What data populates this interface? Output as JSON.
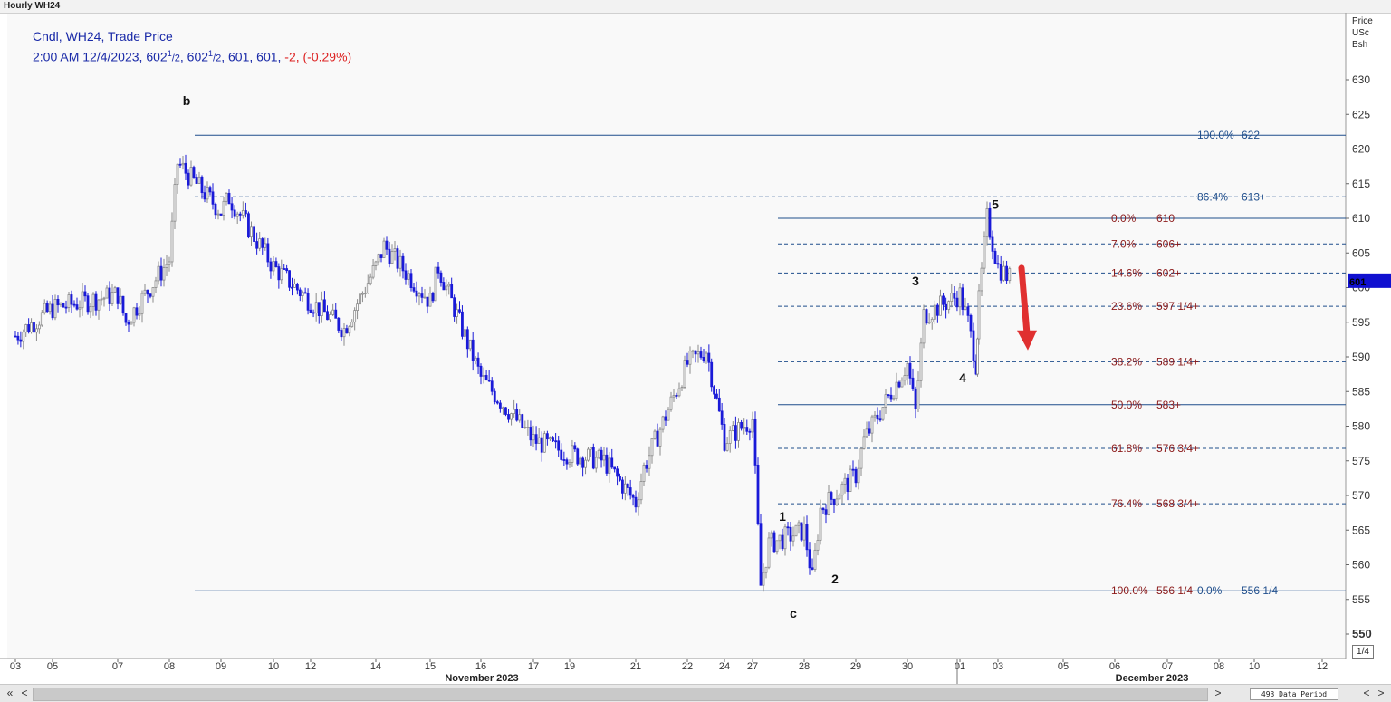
{
  "window": {
    "title": "Hourly WH24"
  },
  "legend": {
    "line1": "Cndl, WH24, Trade Price",
    "line2_prefix": "2:00 AM 12/4/2023, 602",
    "sup_a": "1",
    "sub_a": "/2",
    "mid": ", 602",
    "sup_b": "1",
    "sub_b": "/2",
    "suffix": ", 601, 601, ",
    "change": "-2, (-0.29%)"
  },
  "axis_title": {
    "l1": "Price",
    "l2": "USc",
    "l3": "Bsh"
  },
  "unit_label": "1/4",
  "last_price_tag": "601",
  "scrollbar": {
    "left": "«",
    "lt": "<",
    "gt": ">",
    "right": "»",
    "period_label": "493 Data Period"
  },
  "colors": {
    "up": "#8a8a8a",
    "down": "#1a1ad8",
    "fib_line": "#1f4e8c",
    "fib_text_red": "#8b1a1a",
    "fib_text_blue": "#1f4e8c",
    "arrow": "#e03030",
    "price_tag": "#1010d0"
  },
  "chart_data": {
    "type": "candlestick",
    "title": "Hourly WH24",
    "ylabel": "Price USc Bsh",
    "ylim": [
      546,
      633
    ],
    "y_ticks": [
      550,
      555,
      560,
      565,
      570,
      575,
      580,
      585,
      590,
      595,
      600,
      605,
      610,
      615,
      620,
      625,
      630
    ],
    "x_ticks": [
      "03",
      "05",
      "07",
      "08",
      "09",
      "10",
      "12",
      "14",
      "15",
      "16",
      "17",
      "19",
      "21",
      "22",
      "24",
      "27",
      "28",
      "29",
      "30",
      "01",
      "03",
      "05",
      "06",
      "07",
      "08",
      "10",
      "12"
    ],
    "x_month_labels": [
      "November 2023",
      "December 2023"
    ],
    "price_path": [
      {
        "d": "Nov 03",
        "p": 593
      },
      {
        "d": "Nov 05",
        "p": 597
      },
      {
        "d": "Nov 06",
        "p": 598
      },
      {
        "d": "Nov 07",
        "p": 599
      },
      {
        "d": "Nov 07",
        "p": 595
      },
      {
        "d": "Nov 08",
        "p": 604
      },
      {
        "d": "Nov 08",
        "p": 618
      },
      {
        "d": "Nov 09",
        "p": 611
      },
      {
        "d": "Nov 09",
        "p": 613
      },
      {
        "d": "Nov 10",
        "p": 603
      },
      {
        "d": "Nov 12",
        "p": 598
      },
      {
        "d": "Nov 13",
        "p": 594
      },
      {
        "d": "Nov 14",
        "p": 603
      },
      {
        "d": "Nov 14",
        "p": 606
      },
      {
        "d": "Nov 15",
        "p": 598
      },
      {
        "d": "Nov 15",
        "p": 603
      },
      {
        "d": "Nov 16",
        "p": 587
      },
      {
        "d": "Nov 17",
        "p": 578
      },
      {
        "d": "Nov 19",
        "p": 576
      },
      {
        "d": "Nov 20",
        "p": 575
      },
      {
        "d": "Nov 21",
        "p": 569
      },
      {
        "d": "Nov 21",
        "p": 574
      },
      {
        "d": "Nov 22",
        "p": 589
      },
      {
        "d": "Nov 23",
        "p": 591
      },
      {
        "d": "Nov 24",
        "p": 578
      },
      {
        "d": "Nov 27",
        "p": 581
      },
      {
        "d": "Nov 27",
        "p": 557
      },
      {
        "d": "Nov 27",
        "p": 563
      },
      {
        "d": "Nov 28",
        "p": 565
      },
      {
        "d": "Nov 28",
        "p": 558
      },
      {
        "d": "Nov 28",
        "p": 568
      },
      {
        "d": "Nov 29",
        "p": 573
      },
      {
        "d": "Nov 29",
        "p": 578
      },
      {
        "d": "Nov 30",
        "p": 589
      },
      {
        "d": "Nov 30",
        "p": 582
      },
      {
        "d": "Nov 30",
        "p": 596
      },
      {
        "d": "Dec 01",
        "p": 599
      },
      {
        "d": "Dec 01",
        "p": 595
      },
      {
        "d": "Dec 01",
        "p": 589
      },
      {
        "d": "Dec 02",
        "p": 598
      },
      {
        "d": "Dec 02",
        "p": 610
      },
      {
        "d": "Dec 03",
        "p": 603
      },
      {
        "d": "Dec 04",
        "p": 601
      }
    ],
    "wave_labels": [
      {
        "text": "b",
        "date": "Nov 08",
        "price": 627
      },
      {
        "text": "1",
        "date": "Nov 27",
        "price": 567
      },
      {
        "text": "2",
        "date": "Nov 28",
        "price": 558
      },
      {
        "text": "c",
        "date": "Nov 27",
        "price": 553
      },
      {
        "text": "3",
        "date": "Nov 30",
        "price": 601
      },
      {
        "text": "4",
        "date": "Dec 01",
        "price": 587
      },
      {
        "text": "5",
        "date": "Dec 02",
        "price": 612
      }
    ],
    "fib_levels_major": [
      {
        "label": "100.0%",
        "value_text": "622",
        "price": 622,
        "style": "solid",
        "color": "blue"
      },
      {
        "label": "86.4%",
        "value_text": "613+",
        "price": 613.1,
        "style": "dashed",
        "color": "blue"
      }
    ],
    "fib_levels_minor": [
      {
        "label": "0.0%",
        "value_text": "610",
        "price": 610,
        "style": "solid"
      },
      {
        "label": "7.0%",
        "value_text": "606+",
        "price": 606.3,
        "style": "dashed"
      },
      {
        "label": "14.6%",
        "value_text": "602+",
        "price": 602.1,
        "style": "dashed"
      },
      {
        "label": "23.6%",
        "value_text": "597 1/4+",
        "price": 597.3,
        "style": "dashed"
      },
      {
        "label": "38.2%",
        "value_text": "589 1/4+",
        "price": 589.3,
        "style": "dashed"
      },
      {
        "label": "50.0%",
        "value_text": "583+",
        "price": 583.1,
        "style": "solid"
      },
      {
        "label": "61.8%",
        "value_text": "576 3/4+",
        "price": 576.8,
        "style": "dashed"
      },
      {
        "label": "76.4%",
        "value_text": "568 3/4+",
        "price": 568.8,
        "style": "dashed"
      },
      {
        "label": "100.0%",
        "value_text": "556 1/4",
        "price": 556.25,
        "style": "solid"
      }
    ],
    "fib_base_label": {
      "label": "0.0%",
      "value_text": "556 1/4",
      "price": 556.25
    },
    "arrow": {
      "direction": "down",
      "from_price": 601,
      "to_price": 592
    }
  }
}
